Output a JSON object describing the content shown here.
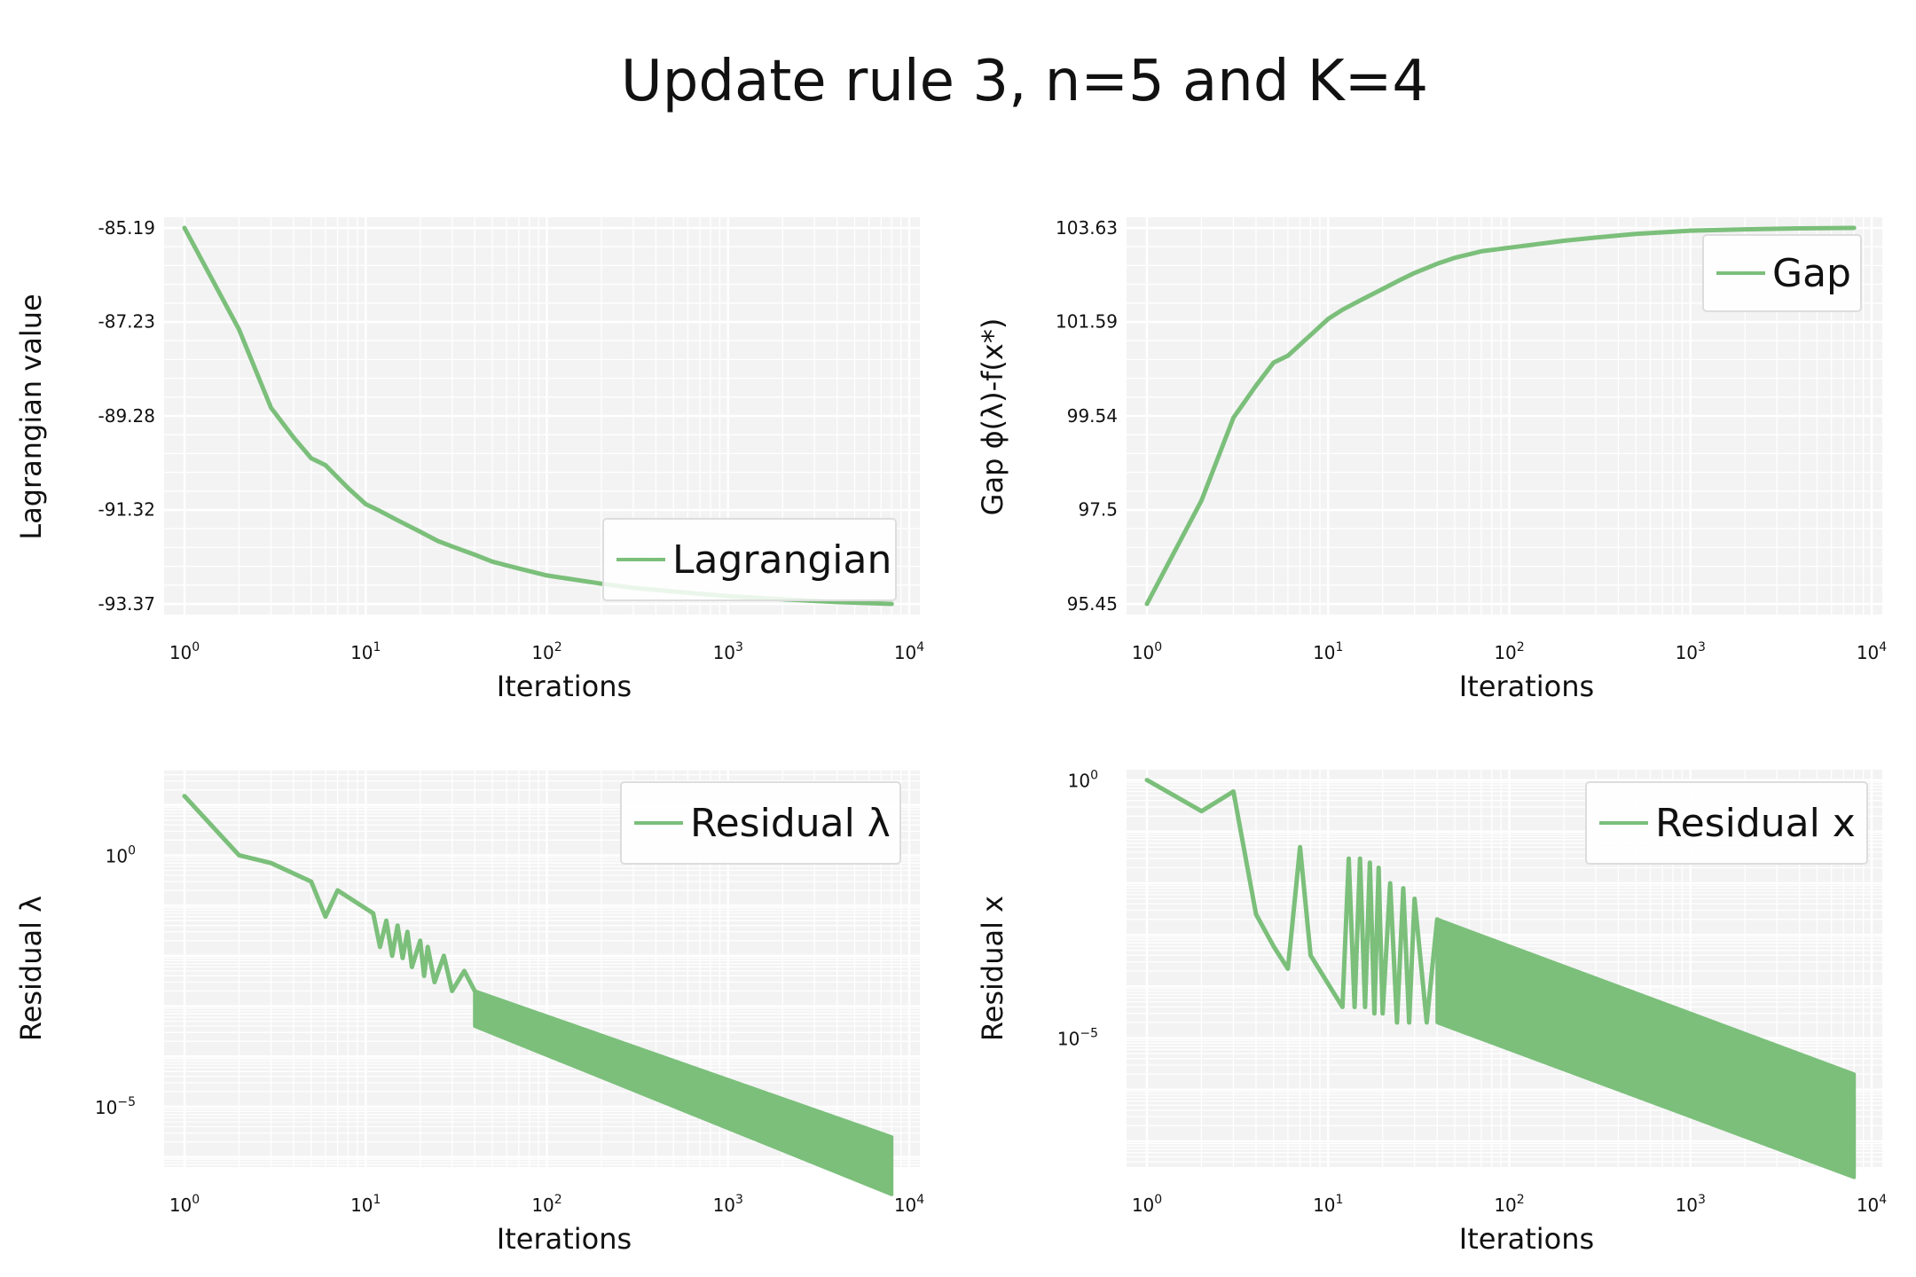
{
  "figure": {
    "title": "Update rule 3, n=5 and K=4",
    "line_color": "#7bbf7b",
    "panel_bg": "#f3f3f3"
  },
  "chart_data": [
    {
      "type": "line",
      "xscale": "log",
      "yscale": "linear",
      "xlabel": "Iterations",
      "ylabel": "Lagrangian value",
      "xlim": [
        1,
        8000
      ],
      "ylim": [
        -93.37,
        -85.19
      ],
      "xticks": [
        1,
        10,
        100,
        1000,
        10000
      ],
      "yticks": [
        -85.19,
        -87.23,
        -89.28,
        -91.32,
        -93.37
      ],
      "ytick_labels": [
        "-85.19",
        "-87.23",
        "-89.28",
        "-91.32",
        "-93.37"
      ],
      "legend": "lower-right",
      "series": [
        {
          "name": "Lagrangian",
          "x": [
            1,
            2,
            3,
            4,
            5,
            6,
            8,
            10,
            12,
            15,
            20,
            25,
            30,
            40,
            50,
            70,
            100,
            200,
            300,
            500,
            1000,
            2000,
            4000,
            8000
          ],
          "y": [
            -85.19,
            -87.4,
            -89.1,
            -89.75,
            -90.2,
            -90.35,
            -90.85,
            -91.2,
            -91.35,
            -91.55,
            -91.8,
            -92.0,
            -92.12,
            -92.3,
            -92.45,
            -92.6,
            -92.75,
            -92.93,
            -93.02,
            -93.1,
            -93.2,
            -93.27,
            -93.33,
            -93.37
          ]
        }
      ]
    },
    {
      "type": "line",
      "xscale": "log",
      "yscale": "linear",
      "xlabel": "Iterations",
      "ylabel": "Gap ϕ(λ)-f(x*)",
      "xlim": [
        1,
        8000
      ],
      "ylim": [
        95.45,
        103.63
      ],
      "xticks": [
        1,
        10,
        100,
        1000,
        10000
      ],
      "yticks": [
        103.63,
        101.59,
        99.54,
        97.5,
        95.45
      ],
      "ytick_labels": [
        "103.63",
        "101.59",
        "99.54",
        "97.5",
        "95.45"
      ],
      "legend": "upper-right",
      "series": [
        {
          "name": "Gap",
          "x": [
            1,
            2,
            3,
            4,
            5,
            6,
            8,
            10,
            12,
            15,
            20,
            25,
            30,
            40,
            50,
            70,
            100,
            200,
            300,
            500,
            1000,
            2000,
            4000,
            8000
          ],
          "y": [
            95.45,
            97.7,
            99.5,
            100.2,
            100.7,
            100.85,
            101.3,
            101.65,
            101.85,
            102.05,
            102.3,
            102.5,
            102.65,
            102.85,
            102.98,
            103.12,
            103.2,
            103.35,
            103.42,
            103.5,
            103.57,
            103.6,
            103.62,
            103.63
          ]
        }
      ]
    },
    {
      "type": "line",
      "xscale": "log",
      "yscale": "log",
      "xlabel": "Iterations",
      "ylabel": "Residual λ",
      "xlim": [
        1,
        8000
      ],
      "ylim": [
        -6.2,
        1.7
      ],
      "ylim_note": "log10 units",
      "xticks": [
        1,
        10,
        100,
        1000,
        10000
      ],
      "yticks": [
        1,
        1e-05
      ],
      "legend": "upper-right",
      "series": [
        {
          "name": "Residual λ",
          "x": [
            1,
            2,
            3,
            5,
            6,
            7,
            11,
            12,
            13,
            14,
            15,
            16,
            17,
            18,
            20,
            21,
            22,
            24,
            27,
            30,
            35,
            40
          ],
          "y": [
            15,
            1.0,
            0.7,
            0.3,
            0.06,
            0.2,
            0.07,
            0.015,
            0.05,
            0.01,
            0.04,
            0.009,
            0.03,
            0.006,
            0.02,
            0.004,
            0.015,
            0.003,
            0.01,
            0.002,
            0.005,
            0.002
          ],
          "band_from": 40,
          "band_upper_at": [
            [
              40,
              0.002
            ],
            [
              8000,
              2.5e-06
            ]
          ],
          "band_lower_at": [
            [
              40,
              0.0004
            ],
            [
              8000,
              1.8e-07
            ]
          ]
        }
      ]
    },
    {
      "type": "line",
      "xscale": "log",
      "yscale": "log",
      "xlabel": "Iterations",
      "ylabel": "Residual x",
      "xlim": [
        1,
        8000
      ],
      "ylim": [
        -7.5,
        0.2
      ],
      "ylim_note": "log10 units",
      "xticks": [
        1,
        10,
        100,
        1000,
        10000
      ],
      "yticks": [
        1,
        1e-05
      ],
      "legend": "upper-right",
      "series": [
        {
          "name": "Residual x",
          "x": [
            1,
            2,
            3,
            4,
            5,
            6,
            7,
            8,
            12,
            13,
            14,
            15,
            16,
            17,
            18,
            19,
            20,
            22,
            24,
            26,
            28,
            30,
            35,
            40
          ],
          "y": [
            1,
            0.25,
            0.6,
            0.0025,
            0.0006,
            0.00022,
            0.05,
            0.0004,
            4e-05,
            0.03,
            4e-05,
            0.03,
            4e-05,
            0.025,
            3e-05,
            0.02,
            3e-05,
            0.01,
            2e-05,
            0.008,
            2e-05,
            0.005,
            2e-05,
            0.002
          ],
          "band_from": 40,
          "band_upper_at": [
            [
              40,
              0.002
            ],
            [
              8000,
              2e-06
            ]
          ],
          "band_lower_at": [
            [
              40,
              2e-05
            ],
            [
              8000,
              2e-08
            ]
          ]
        }
      ]
    }
  ]
}
